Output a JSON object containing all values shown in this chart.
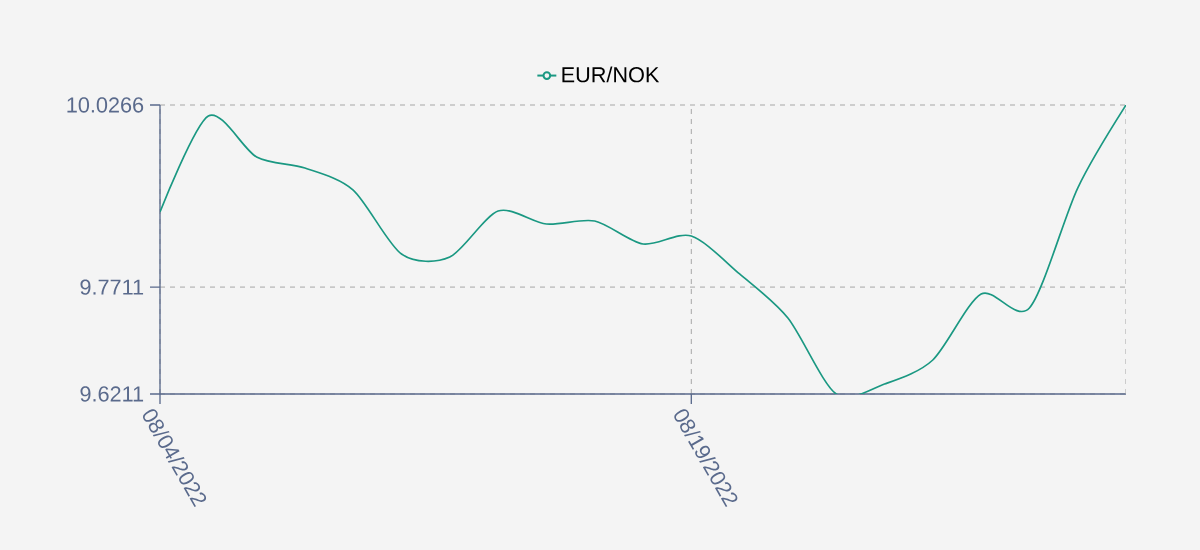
{
  "chart_data": {
    "type": "line",
    "categories": [
      "08/04/2022",
      null,
      null,
      null,
      null,
      null,
      null,
      null,
      null,
      null,
      null,
      "08/19/2022",
      null,
      null,
      null,
      null,
      null,
      null,
      null,
      null,
      null
    ],
    "series": [
      {
        "name": "EUR/NOK",
        "color": "#1a9882",
        "values": [
          9.8765,
          10.0112,
          9.9536,
          9.9382,
          9.9073,
          9.8175,
          9.8133,
          9.8778,
          9.8596,
          9.8638,
          9.8316,
          9.8428,
          9.7895,
          9.7277,
          9.6211,
          9.6351,
          9.6688,
          9.7614,
          9.7418,
          9.9101,
          10.0266
        ]
      }
    ],
    "ylim": [
      9.6211,
      10.0266
    ],
    "yticks": [
      9.6211,
      9.7711,
      10.0266
    ],
    "grid": true,
    "legend": "top"
  }
}
